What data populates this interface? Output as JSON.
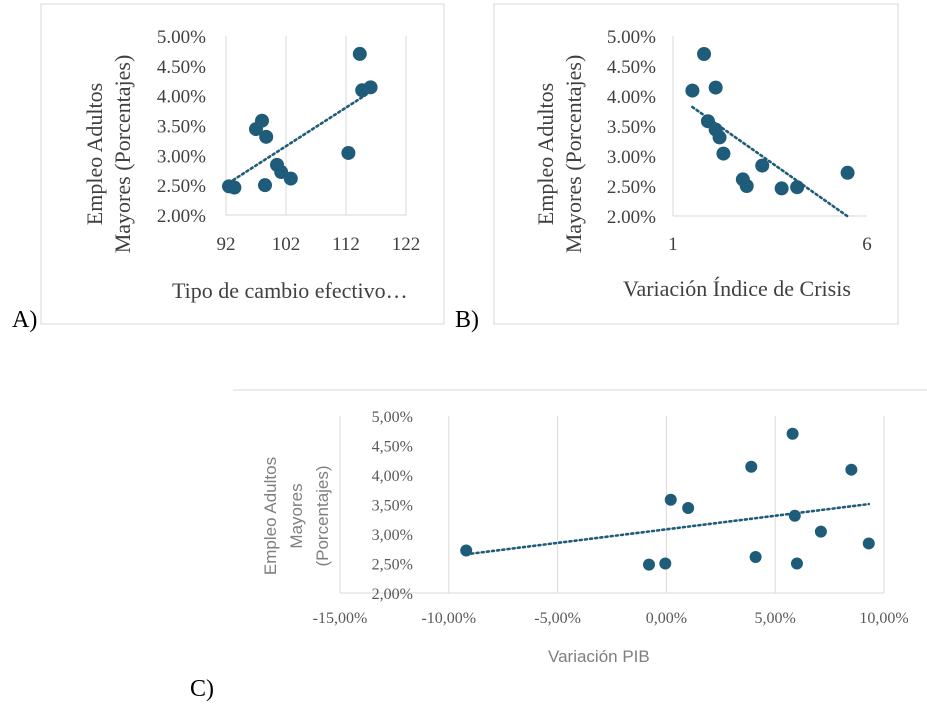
{
  "panel_labels": {
    "a": "A)",
    "b": "B)",
    "c": "C)"
  },
  "colors": {
    "marker": "#1f5c7a",
    "trend": "#1f5c7a",
    "frame": "#d9d9d9",
    "grid": "#d9d9d9"
  },
  "chart_data": [
    {
      "id": "A",
      "type": "scatter",
      "xlabel": "Tipo de cambio efectivo…",
      "ylabel_line1": "Empleo Adultos",
      "ylabel_line2": "Mayores (Porcentajes)",
      "xlim": [
        92,
        122
      ],
      "ylim": [
        0.02,
        0.05
      ],
      "xticks": [
        "92",
        "102",
        "112",
        "122"
      ],
      "yticks": [
        "2.00%",
        "2.50%",
        "3.00%",
        "3.50%",
        "4.00%",
        "4.50%",
        "5.00%"
      ],
      "grid": "vertical",
      "trendline": "linear",
      "points": [
        {
          "x": 92.5,
          "y": 0.0248
        },
        {
          "x": 93.4,
          "y": 0.0246
        },
        {
          "x": 97.0,
          "y": 0.0344
        },
        {
          "x": 98.0,
          "y": 0.0358
        },
        {
          "x": 98.7,
          "y": 0.0331
        },
        {
          "x": 98.5,
          "y": 0.025
        },
        {
          "x": 100.5,
          "y": 0.0284
        },
        {
          "x": 101.2,
          "y": 0.0272
        },
        {
          "x": 102.8,
          "y": 0.0261
        },
        {
          "x": 112.4,
          "y": 0.0304
        },
        {
          "x": 114.3,
          "y": 0.047
        },
        {
          "x": 114.7,
          "y": 0.0409
        },
        {
          "x": 116.1,
          "y": 0.0414
        }
      ]
    },
    {
      "id": "B",
      "type": "scatter",
      "xlabel": "Variación Índice de Crisis",
      "ylabel_line1": "Empleo Adultos",
      "ylabel_line2": "Mayores (Porcentajes)",
      "xlim": [
        1,
        6
      ],
      "ylim": [
        0.02,
        0.05
      ],
      "xticks": [
        "1",
        "6"
      ],
      "yticks": [
        "2.00%",
        "2.50%",
        "3.00%",
        "3.50%",
        "4.00%",
        "4.50%",
        "5.00%"
      ],
      "grid": "none",
      "trendline": "linear",
      "points": [
        {
          "x": 1.5,
          "y": 0.0409
        },
        {
          "x": 1.8,
          "y": 0.047
        },
        {
          "x": 1.9,
          "y": 0.0358
        },
        {
          "x": 2.1,
          "y": 0.0414
        },
        {
          "x": 2.1,
          "y": 0.0344
        },
        {
          "x": 2.2,
          "y": 0.0331
        },
        {
          "x": 2.3,
          "y": 0.0304
        },
        {
          "x": 3.3,
          "y": 0.0284
        },
        {
          "x": 2.8,
          "y": 0.0261
        },
        {
          "x": 2.9,
          "y": 0.025
        },
        {
          "x": 3.8,
          "y": 0.0246
        },
        {
          "x": 4.2,
          "y": 0.0248
        },
        {
          "x": 5.5,
          "y": 0.0272
        }
      ]
    },
    {
      "id": "C",
      "type": "scatter",
      "xlabel": "Variación PIB",
      "ylabel_line1": "Empleo Adultos",
      "ylabel_line2": "Mayores",
      "ylabel_line3": "(Porcentajes)",
      "xlim": [
        -0.15,
        0.1
      ],
      "ylim": [
        0.02,
        0.05
      ],
      "xticks": [
        "-15,00%",
        "-10,00%",
        "-5,00%",
        "0,00%",
        "5,00%",
        "10,00%"
      ],
      "yticks": [
        "2,00%",
        "2,50%",
        "3,00%",
        "3,50%",
        "4,00%",
        "4,50%",
        "5,00%"
      ],
      "grid": "vertical",
      "trendline": "linear",
      "points": [
        {
          "x": -0.092,
          "y": 0.0272
        },
        {
          "x": -0.008,
          "y": 0.0248
        },
        {
          "x": -0.0005,
          "y": 0.025
        },
        {
          "x": 0.002,
          "y": 0.0358
        },
        {
          "x": 0.01,
          "y": 0.0344
        },
        {
          "x": 0.039,
          "y": 0.0414
        },
        {
          "x": 0.041,
          "y": 0.0261
        },
        {
          "x": 0.058,
          "y": 0.047
        },
        {
          "x": 0.059,
          "y": 0.0331
        },
        {
          "x": 0.06,
          "y": 0.025
        },
        {
          "x": 0.071,
          "y": 0.0304
        },
        {
          "x": 0.085,
          "y": 0.0409
        },
        {
          "x": 0.093,
          "y": 0.0284
        }
      ]
    }
  ]
}
